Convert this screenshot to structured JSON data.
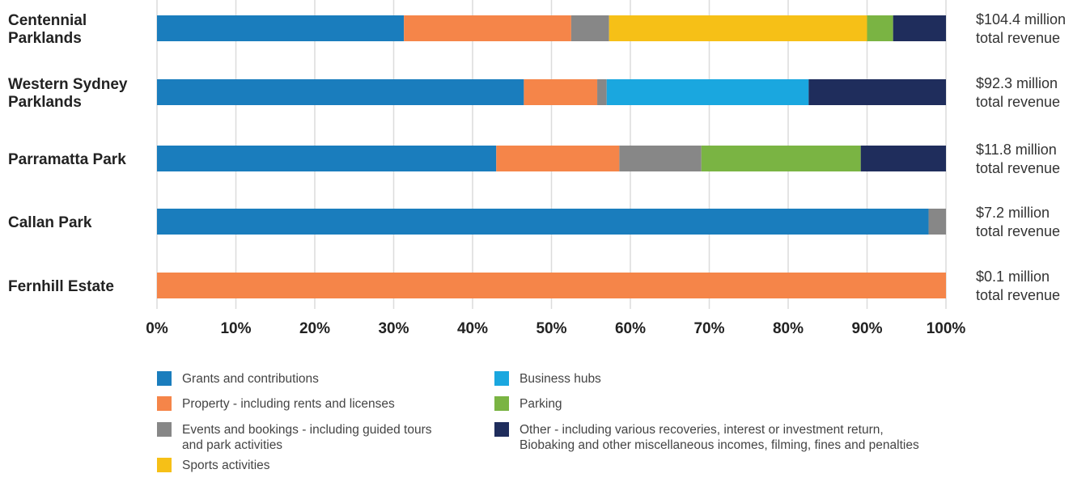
{
  "chart_data": {
    "type": "bar",
    "orientation": "horizontal",
    "stacked": true,
    "normalized_percent": true,
    "categories": [
      "Centennial Parklands",
      "Western Sydney Parklands",
      "Parramatta Park",
      "Callan Park",
      "Fernhill Estate"
    ],
    "category_lines": [
      [
        "Centennial",
        "Parklands"
      ],
      [
        "Western Sydney",
        "Parklands"
      ],
      [
        "Parramatta Park"
      ],
      [
        "Callan Park"
      ],
      [
        "Fernhill Estate"
      ]
    ],
    "totals": [
      [
        "$104.4 million",
        "total revenue"
      ],
      [
        "$92.3 million",
        "total revenue"
      ],
      [
        "$11.8 million",
        "total revenue"
      ],
      [
        "$7.2 million",
        "total revenue"
      ],
      [
        "$0.1 million",
        "total revenue"
      ]
    ],
    "series": [
      {
        "name": "Grants and contributions",
        "color": "#1a7dbd",
        "values": [
          31.3,
          46.5,
          43.0,
          97.8,
          0
        ]
      },
      {
        "name": "Property - including rents and licenses",
        "color": "#f58549",
        "values": [
          21.2,
          9.3,
          15.6,
          0,
          100
        ]
      },
      {
        "name": "Events and bookings - including guided tours and park activities",
        "color": "#878787",
        "values": [
          4.8,
          1.2,
          10.4,
          2.2,
          0
        ]
      },
      {
        "name": "Sports activities",
        "color": "#f6c017",
        "values": [
          32.7,
          0,
          0,
          0,
          0
        ]
      },
      {
        "name": "Business hubs",
        "color": "#1aa7df",
        "values": [
          0,
          25.6,
          0,
          0,
          0
        ]
      },
      {
        "name": "Parking",
        "color": "#7ab443",
        "values": [
          3.3,
          0,
          20.2,
          0,
          0
        ]
      },
      {
        "name": "Other - including various recoveries, interest or investment return, Biobaking and other miscellaneous incomes, filming, fines and penalties",
        "color": "#1f2d5c",
        "values": [
          6.7,
          17.4,
          10.8,
          0,
          0
        ]
      }
    ],
    "xticks": [
      "0%",
      "10%",
      "20%",
      "30%",
      "40%",
      "50%",
      "60%",
      "70%",
      "80%",
      "90%",
      "100%"
    ],
    "xlim": [
      0,
      100
    ],
    "grid": true,
    "legend_position": "bottom",
    "title": "",
    "xlabel": "",
    "ylabel": ""
  },
  "legend": {
    "items": [
      {
        "lines": [
          "Grants and contributions"
        ]
      },
      {
        "lines": [
          "Property - including rents and licenses"
        ]
      },
      {
        "lines": [
          "Events and bookings - including guided tours",
          "and park activities"
        ]
      },
      {
        "lines": [
          "Sports activities"
        ]
      },
      {
        "lines": [
          "Business hubs"
        ]
      },
      {
        "lines": [
          "Parking"
        ]
      },
      {
        "lines": [
          "Other - including various recoveries, interest or investment return,",
          "Biobaking and other miscellaneous incomes, filming, fines and penalties"
        ]
      }
    ]
  }
}
